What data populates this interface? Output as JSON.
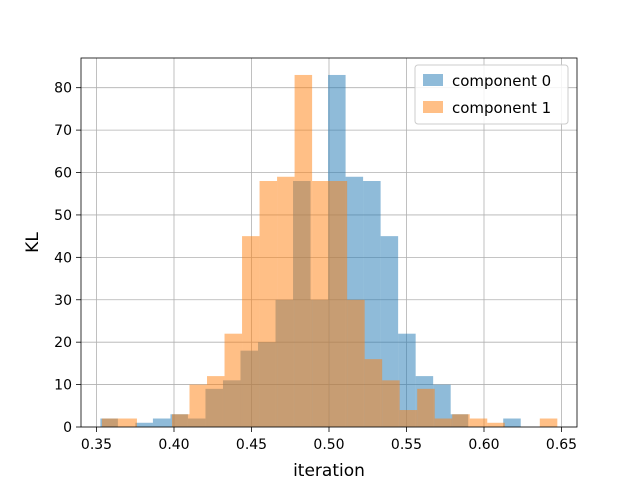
{
  "chart_data": {
    "type": "bar",
    "subtype": "histogram-overlay",
    "title": "",
    "xlabel": "iteration",
    "ylabel": "KL",
    "xlim": [
      0.34,
      0.66
    ],
    "ylim": [
      0,
      87
    ],
    "xticks": [
      "0.35",
      "0.40",
      "0.45",
      "0.50",
      "0.55",
      "0.60",
      "0.65"
    ],
    "yticks": [
      "0",
      "10",
      "20",
      "30",
      "40",
      "50",
      "60",
      "70",
      "80"
    ],
    "grid": true,
    "legend_position": "top-right",
    "series": [
      {
        "name": "component 0",
        "color": "#1f77b4",
        "opacity": 0.5,
        "bin_start": 0.3525,
        "bin_width": 0.0113,
        "values": [
          2,
          0,
          1,
          2,
          3,
          2,
          9,
          11,
          18,
          20,
          30,
          58,
          30,
          83,
          59,
          58,
          45,
          22,
          12,
          10,
          3,
          0,
          0,
          2
        ]
      },
      {
        "name": "component 1",
        "color": "#ff7f0e",
        "opacity": 0.5,
        "bin_start": 0.3535,
        "bin_width": 0.0113,
        "values": [
          2,
          2,
          0,
          0,
          3,
          10,
          12,
          22,
          45,
          58,
          59,
          83,
          58,
          58,
          30,
          16,
          11,
          4,
          9,
          2,
          3,
          2,
          1,
          0,
          0,
          2
        ]
      }
    ]
  }
}
